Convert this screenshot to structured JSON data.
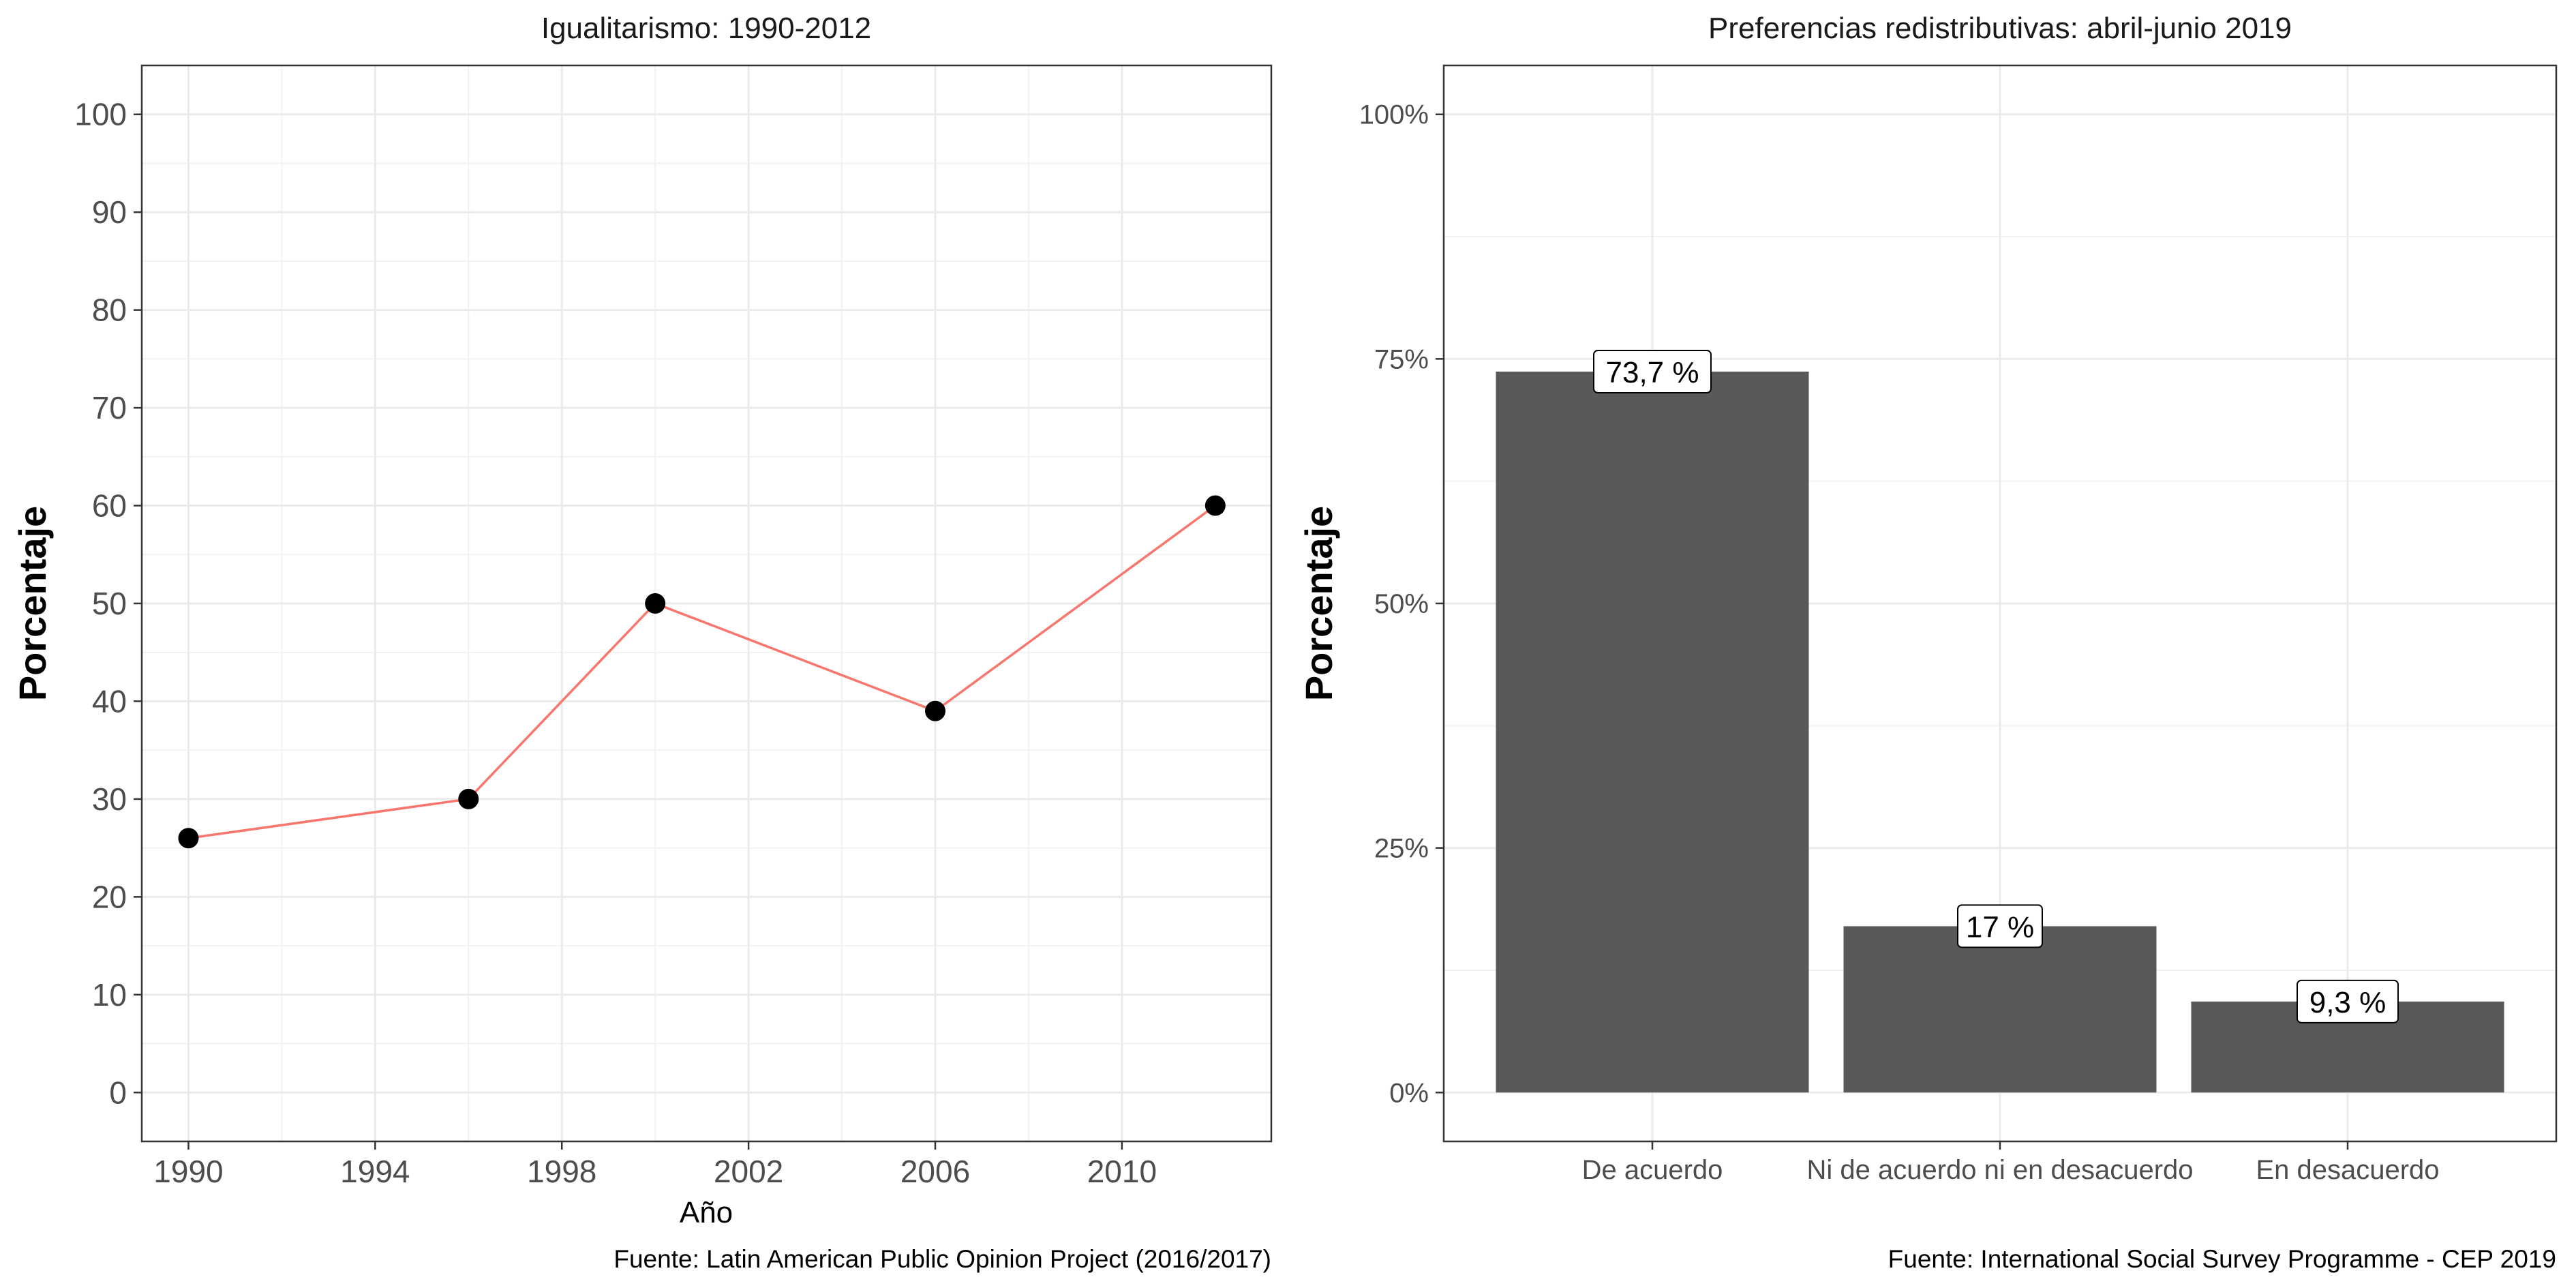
{
  "chart_data": [
    {
      "type": "line",
      "title": "Igualitarismo: 1990-2012",
      "xlabel": "Año",
      "ylabel": "Porcentaje",
      "caption": "Fuente:  Latin American Public Opinion Project (2016/2017)",
      "x": [
        1990,
        1996,
        2000,
        2006,
        2012
      ],
      "y": [
        26,
        30,
        50,
        39,
        60
      ],
      "xlim": [
        1989,
        2013.2
      ],
      "ylim": [
        -5,
        105
      ],
      "xticks": [
        "1990",
        "1994",
        "1998",
        "2002",
        "2006",
        "2010"
      ],
      "yticks": [
        "0",
        "10",
        "20",
        "30",
        "40",
        "50",
        "60",
        "70",
        "80",
        "90",
        "100"
      ],
      "line_color": "#f8766d",
      "point_color": "#000000",
      "grid": true
    },
    {
      "type": "bar",
      "title": "Preferencias redistributivas: abril-junio 2019",
      "xlabel": "",
      "ylabel": "Porcentaje",
      "caption": "Fuente: International Social Survey Programme - CEP 2019",
      "categories": [
        "De acuerdo",
        "Ni de acuerdo ni en desacuerdo",
        "En desacuerdo"
      ],
      "values": [
        73.7,
        17,
        9.3
      ],
      "data_labels": [
        "73,7 %",
        "17 %",
        "9,3 %"
      ],
      "ylim": [
        -5,
        105
      ],
      "yticks": [
        "0%",
        "25%",
        "50%",
        "75%",
        "100%"
      ],
      "bar_color": "#595959",
      "grid": true
    }
  ]
}
